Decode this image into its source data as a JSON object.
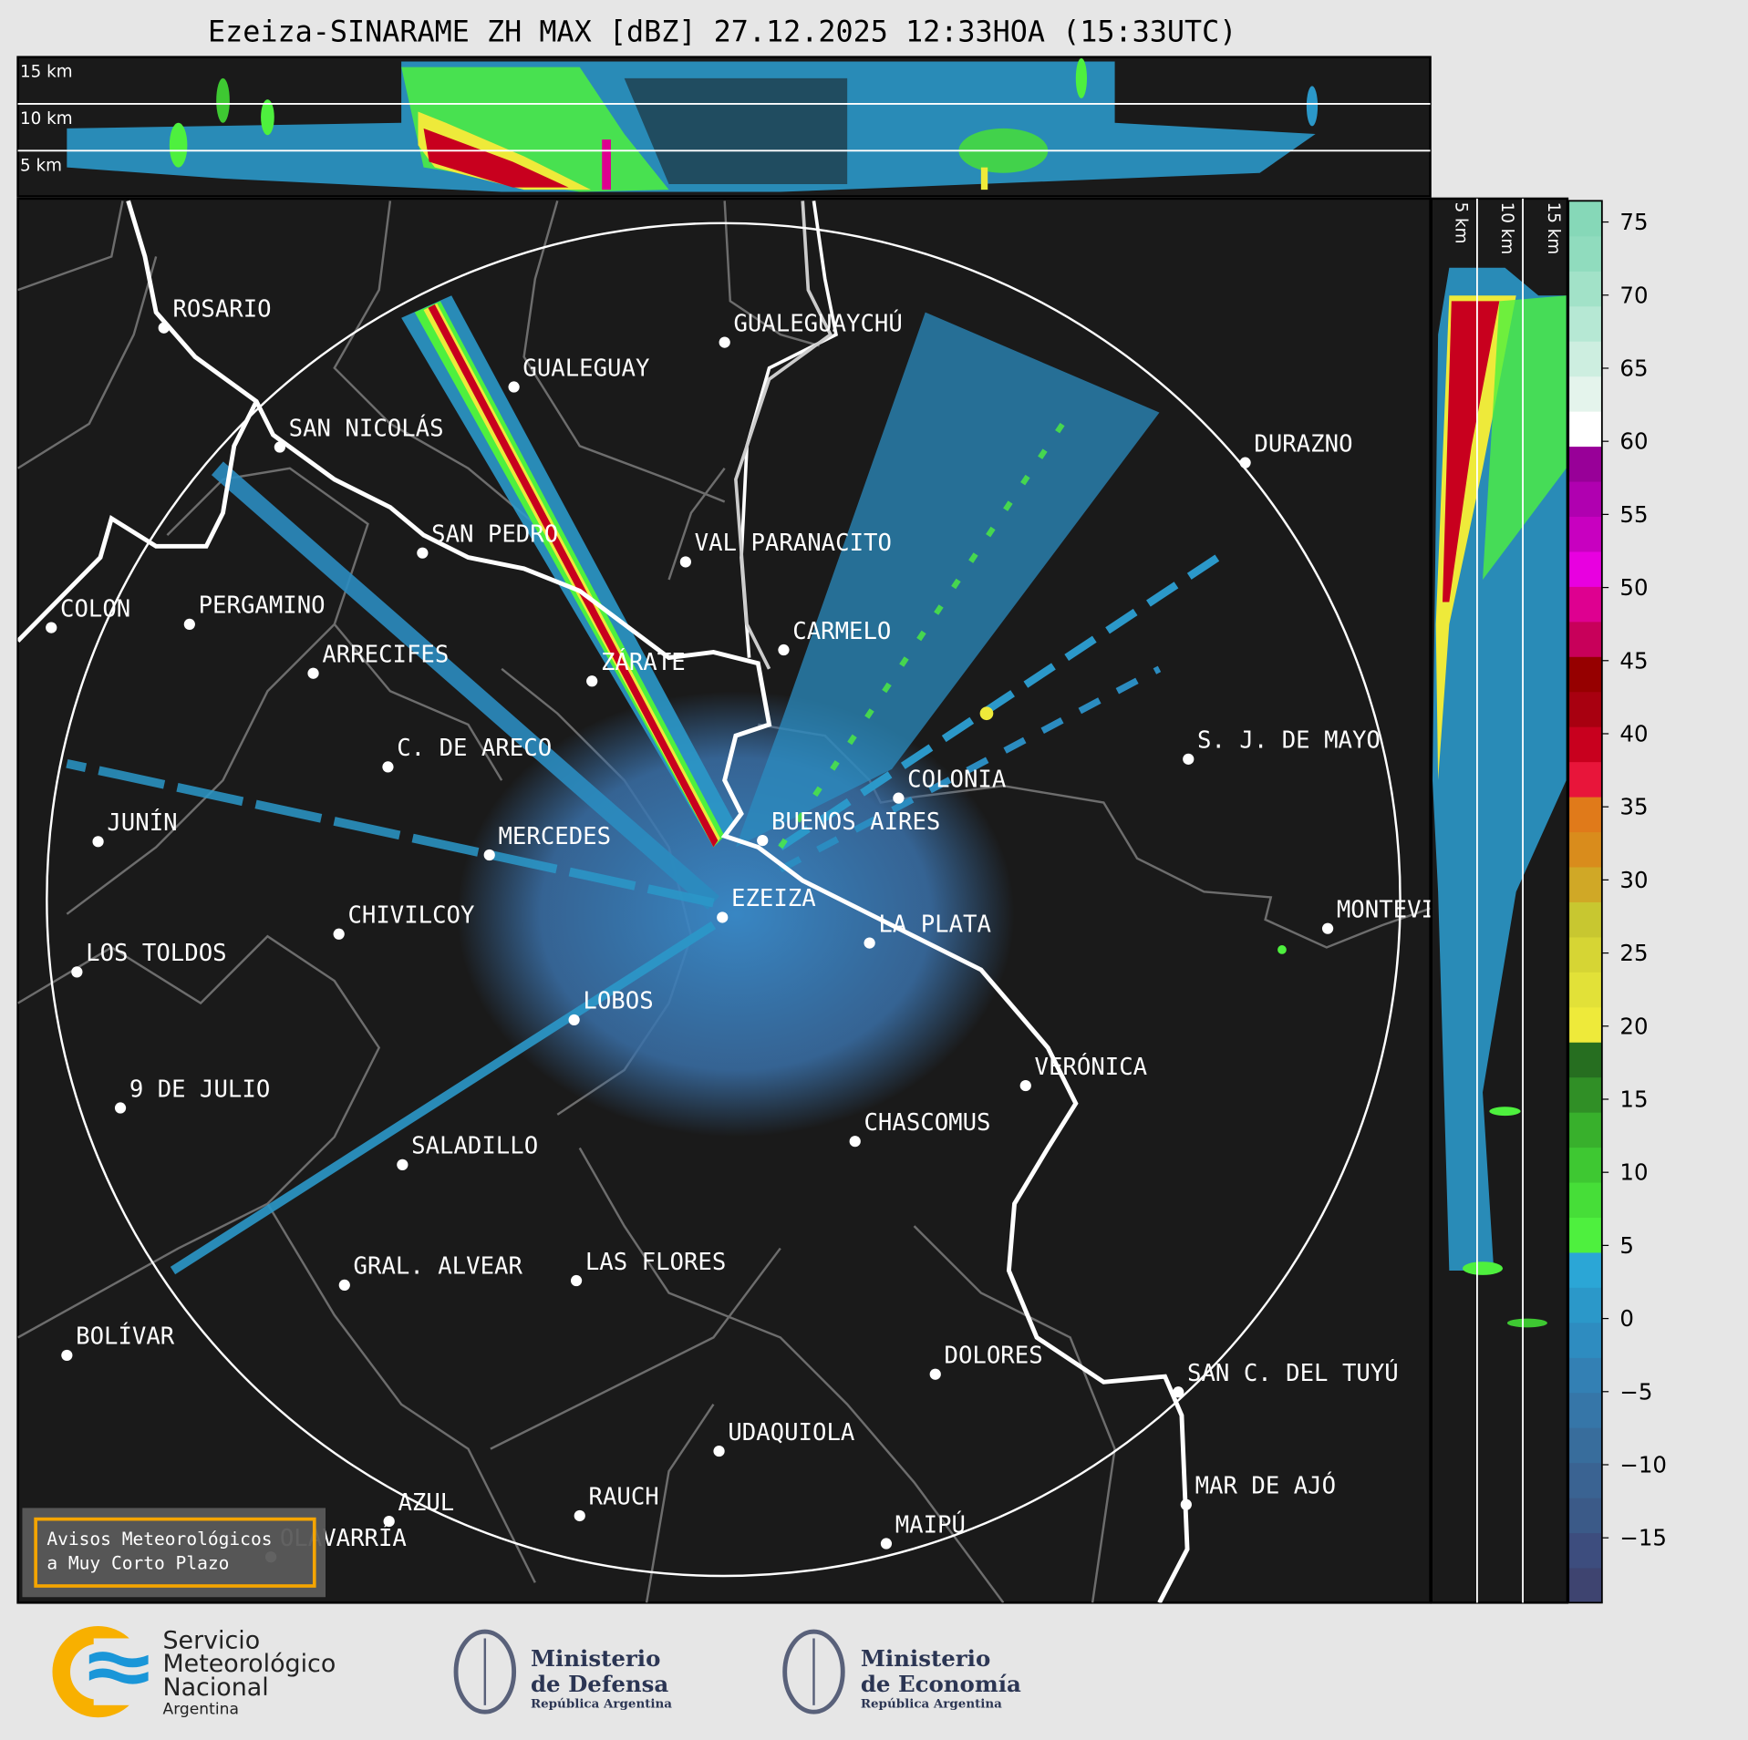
{
  "title": "Ezeiza-SINARAME ZH MAX [dBZ] 27.12.2025 12:33HOA (15:33UTC)",
  "top_panel": {
    "height_labels": [
      "15 km",
      "10 km",
      "5 km"
    ]
  },
  "side_panel": {
    "height_labels": [
      "5 km",
      "10 km",
      "15 km"
    ]
  },
  "colorbar": {
    "unit": "dBZ",
    "ticks": [
      "75",
      "70",
      "65",
      "60",
      "55",
      "50",
      "45",
      "40",
      "35",
      "30",
      "25",
      "20",
      "15",
      "10",
      "5",
      "0",
      "−5",
      "−10",
      "−15"
    ],
    "colors": [
      "#3e4470",
      "#3d4d7e",
      "#3b5a88",
      "#3a6392",
      "#386d9c",
      "#3676a8",
      "#3380b4",
      "#2e8cc0",
      "#2b98c9",
      "#2ba6d6",
      "#4ef03e",
      "#46de38",
      "#3ec832",
      "#38b02c",
      "#308f26",
      "#266e20",
      "#eeea3a",
      "#e2e138",
      "#d6d534",
      "#c8c730",
      "#d0a826",
      "#d98c1c",
      "#e07a1a",
      "#e8153a",
      "#c8001e",
      "#a80010",
      "#960000",
      "#c8005a",
      "#de0090",
      "#e800e0",
      "#c800c0",
      "#b000b0",
      "#980098",
      "#ffffff",
      "#e4f4ec",
      "#cdeee0",
      "#b6e8d4",
      "#a2e2c8",
      "#90dcbe",
      "#86d8b8"
    ]
  },
  "cities": [
    "ROSARIO",
    "GUALEGUAY",
    "GUALEGUAYCHÚ",
    "SAN NICOLÁS",
    "DURAZNO",
    "SAN PEDRO",
    "VAL PARANACITO",
    "COLON",
    "PERGAMINO",
    "CARMELO",
    "ARRECIFES",
    "ZÁRATE",
    "S. J. DE MAYO",
    "C. DE ARECO",
    "COLONIA",
    "BUENOS AIRES",
    "JUNÍN",
    "MERCEDES",
    "EZEIZA",
    "LA PLATA",
    "MONTEVIDEO",
    "CHIVILCOY",
    "LOS TOLDOS",
    "LOBOS",
    "VERÓNICA",
    "9 DE JULIO",
    "CHASCOMUS",
    "SALADILLO",
    "GRAL. ALVEAR",
    "LAS FLORES",
    "BOLÍVAR",
    "DOLORES",
    "SAN C. DEL TUYÚ",
    "UDAQUIOLA",
    "MAR DE AJÓ",
    "RAUCH",
    "AZUL",
    "OLAVARRÍA",
    "MAIPÚ"
  ],
  "warning_box": {
    "line1": "Avisos Meteorológicos",
    "line2": "a Muy Corto Plazo",
    "border_color": "#f5a500"
  },
  "footer": {
    "smn": {
      "line1": "Servicio",
      "line2": "Meteorológico",
      "line3": "Nacional",
      "line4": "Argentina"
    },
    "defensa": {
      "line1": "Ministerio",
      "line2": "de Defensa",
      "line3": "República Argentina"
    },
    "economia": {
      "line1": "Ministerio",
      "line2": "de Economía",
      "line3": "República Argentina"
    }
  }
}
